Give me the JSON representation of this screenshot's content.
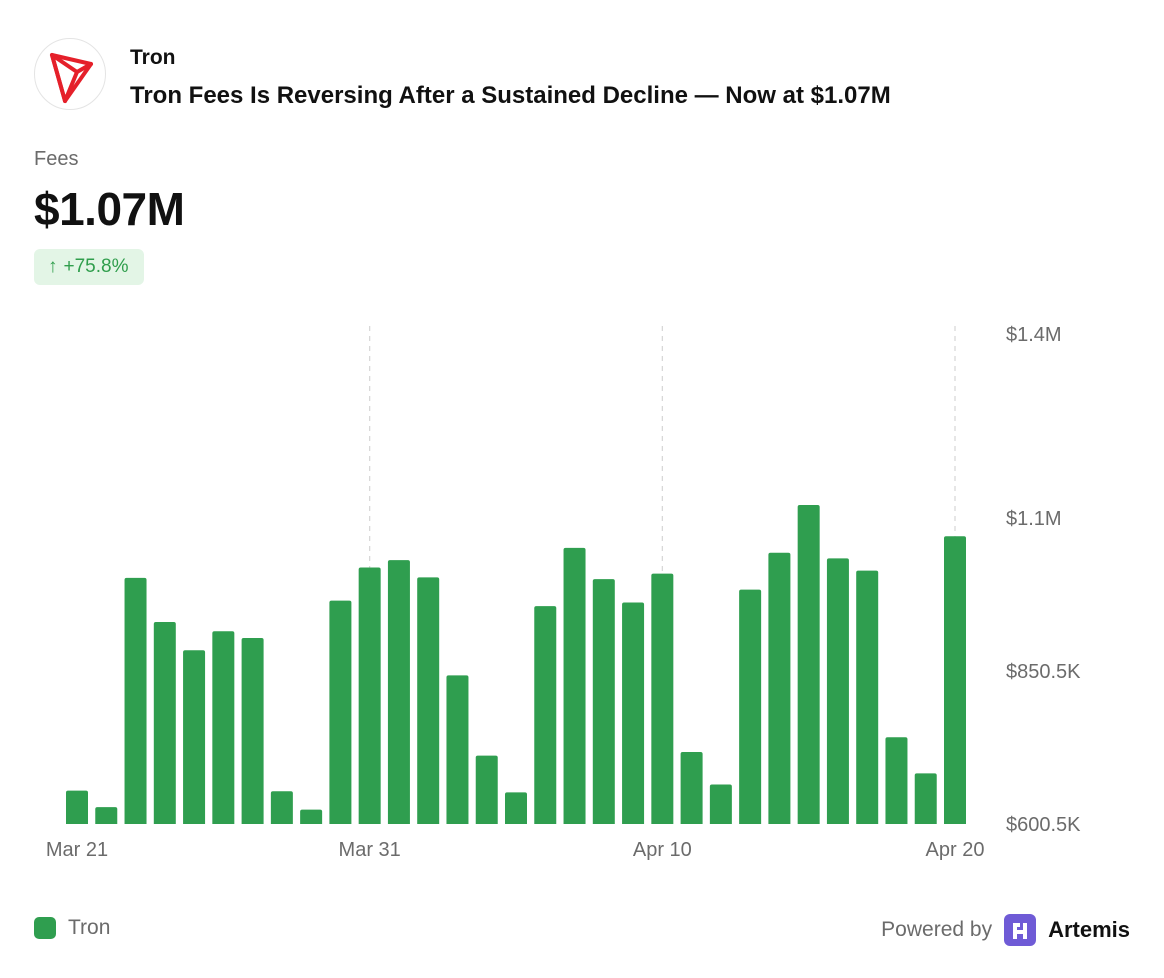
{
  "header": {
    "chain_name": "Tron",
    "headline": "Tron Fees Is Reversing After a Sustained Decline — Now at $1.07M"
  },
  "metric": {
    "label": "Fees",
    "value": "$1.07M",
    "change": "+75.8%",
    "change_icon": "arrow-up-icon"
  },
  "colors": {
    "bar": "#2f9e4f",
    "brand_red": "#e5202a",
    "badge_bg": "#e3f5e6",
    "badge_text": "#2f9e4c",
    "artemis_purple": "#6f5bd6"
  },
  "chart_data": {
    "type": "bar",
    "title": "Fees",
    "series_name": "Tron",
    "unit": "USD",
    "categories": [
      "Mar 21",
      "Mar 22",
      "Mar 23",
      "Mar 24",
      "Mar 25",
      "Mar 26",
      "Mar 27",
      "Mar 28",
      "Mar 29",
      "Mar 30",
      "Mar 31",
      "Apr 1",
      "Apr 2",
      "Apr 3",
      "Apr 4",
      "Apr 5",
      "Apr 6",
      "Apr 7",
      "Apr 8",
      "Apr 9",
      "Apr 10",
      "Apr 11",
      "Apr 12",
      "Apr 13",
      "Apr 14",
      "Apr 15",
      "Apr 16",
      "Apr 17",
      "Apr 18",
      "Apr 19",
      "Apr 20"
    ],
    "values": [
      655000,
      628000,
      1002000,
      930000,
      884000,
      915000,
      904000,
      654000,
      624000,
      965000,
      1019000,
      1031000,
      1003000,
      843000,
      712000,
      652000,
      956000,
      1051000,
      1000000,
      962000,
      1009000,
      718000,
      665000,
      983000,
      1043000,
      1121000,
      1034000,
      1014000,
      742000,
      683000,
      1070000
    ],
    "ylim": [
      600500,
      1400000
    ],
    "y_ticks": [
      {
        "value": 1400000,
        "label": "$1.4M"
      },
      {
        "value": 1100000,
        "label": "$1.1M"
      },
      {
        "value": 850500,
        "label": "$850.5K"
      },
      {
        "value": 600500,
        "label": "$600.5K"
      }
    ],
    "x_ticks": [
      {
        "index": 0,
        "label": "Mar 21"
      },
      {
        "index": 10,
        "label": "Mar 31"
      },
      {
        "index": 20,
        "label": "Apr 10"
      },
      {
        "index": 30,
        "label": "Apr 20"
      }
    ],
    "gridlines": "vertical dashed at x ticks",
    "legend": "bottom-left"
  },
  "footer": {
    "legend_label": "Tron",
    "powered_by": "Powered by",
    "brand": "Artemis",
    "brand_icon": "artemis-logo-icon"
  }
}
